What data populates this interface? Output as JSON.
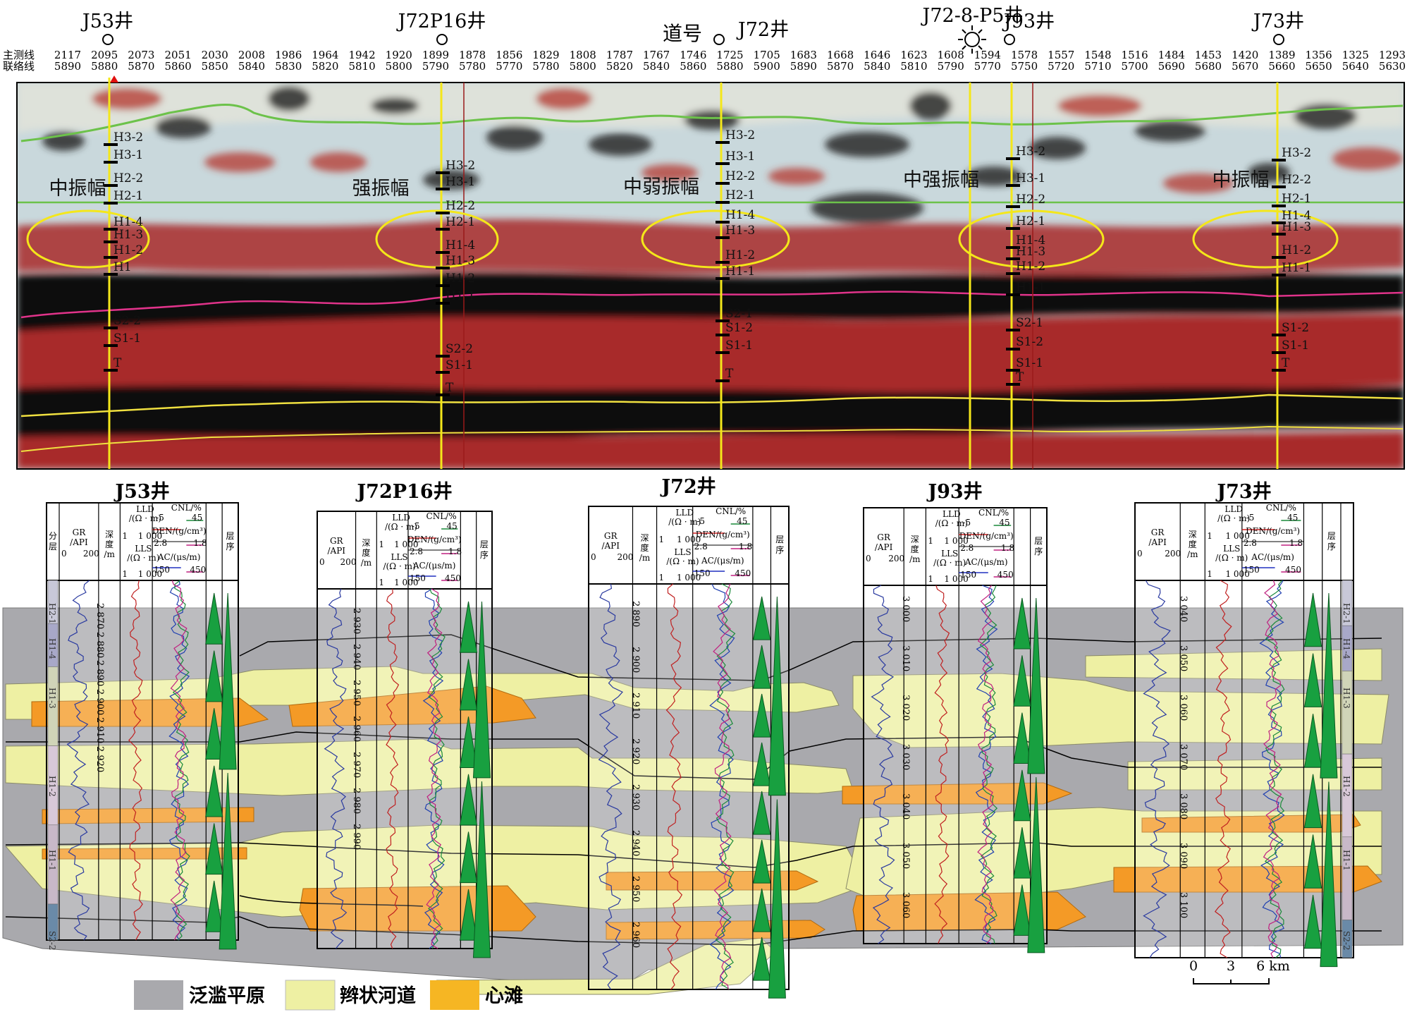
{
  "header": {
    "main_line_label": "主测线",
    "tie_line_label": "联络线",
    "main_line_values": [
      "2117",
      "2095",
      "2073",
      "2051",
      "2030",
      "2008",
      "1986",
      "1964",
      "1942",
      "1920",
      "1899",
      "1878",
      "1856",
      "1829",
      "1808",
      "1787",
      "1767",
      "1746",
      "1725",
      "1705",
      "1683",
      "1668",
      "1646",
      "1623",
      "1608",
      "1594",
      "1578",
      "1557",
      "1548",
      "1516",
      "1484",
      "1453",
      "1420",
      "1389",
      "1356",
      "1325",
      "1293"
    ],
    "tie_line_values": [
      "5890",
      "5880",
      "5870",
      "5860",
      "5850",
      "5840",
      "5830",
      "5820",
      "5810",
      "5800",
      "5790",
      "5780",
      "5770",
      "5780",
      "5800",
      "5820",
      "5840",
      "5860",
      "5880",
      "5900",
      "5890",
      "5870",
      "5840",
      "5810",
      "5790",
      "5770",
      "5750",
      "5720",
      "5710",
      "5700",
      "5690",
      "5680",
      "5670",
      "5660",
      "5650",
      "5640",
      "5630"
    ],
    "channel_label": "道号"
  },
  "top_wells": [
    {
      "name": "J53井"
    },
    {
      "name": "J72P16井"
    },
    {
      "name": "J72井"
    },
    {
      "name": "J72-8-P5井"
    },
    {
      "name": "J93井"
    },
    {
      "name": "J73井"
    }
  ],
  "amplitude_labels": [
    "中振幅",
    "强振幅",
    "中弱振幅",
    "中强振幅",
    "中振幅"
  ],
  "well_layers": {
    "J53": [
      "H3-2",
      "H3-1",
      "H2-2",
      "H2-1",
      "H1-4",
      "H1-3",
      "H1-2",
      "H1",
      "S2-2",
      "S1-1",
      "T"
    ],
    "J72P16": [
      "H3-2",
      "H3-1",
      "H2-2",
      "H2-1",
      "H1-4",
      "H1-3",
      "H1-2",
      "H1-1",
      "S2-2",
      "S1-1",
      "T"
    ],
    "J72": [
      "H3-2",
      "H3-1",
      "H2-2",
      "H2-1",
      "H1-4",
      "H1-3",
      "H1-2",
      "H1-1",
      "S2-1",
      "S1-2",
      "S1-1",
      "T"
    ],
    "J93": [
      "H3-2",
      "H3-1",
      "H2-2",
      "H2-1",
      "H1-4",
      "H1-3",
      "H1-2",
      "H1-1",
      "S2-1",
      "S1-2",
      "S1-1",
      "T"
    ],
    "J73": [
      "H3-2",
      "H2-2",
      "H2-1",
      "H1-4",
      "H1-3",
      "H1-2",
      "H1-1",
      "S1-2",
      "S1-1",
      "T"
    ]
  },
  "log_wells": [
    {
      "name": "J53井",
      "depths": [
        "2 870",
        "2 880",
        "2 890",
        "2 900",
        "2 910",
        "2 920"
      ],
      "zones": [
        "H2-1",
        "H1-4",
        "H1-3",
        "H1-2",
        "H1-1",
        "S2-2"
      ]
    },
    {
      "name": "J72P16井",
      "depths": [
        "2 930",
        "2 940",
        "2 950",
        "2 960",
        "2 970",
        "2 980",
        "2 990"
      ]
    },
    {
      "name": "J72井",
      "depths": [
        "2 890",
        "2 900",
        "2 910",
        "2 920",
        "2 930",
        "2 940",
        "2 950",
        "2 960"
      ]
    },
    {
      "name": "J93井",
      "depths": [
        "3 000",
        "3 010",
        "3 020",
        "3 030",
        "3 040",
        "3 050",
        "3 060"
      ]
    },
    {
      "name": "J73井",
      "depths": [
        "3 040",
        "3 050",
        "3 060",
        "3 070",
        "3 080",
        "3 090",
        "3 100"
      ],
      "zones": [
        "H2-1",
        "H1-4",
        "H1-3",
        "H1-2",
        "H1-1",
        "S2-2"
      ]
    }
  ],
  "log_header": {
    "gr": "GR",
    "gr_unit": "/API",
    "gr_min": "0",
    "gr_max": "200",
    "depth": "深",
    "depth2": "度",
    "depth_unit": "/m",
    "lld": "LLD",
    "lld_unit": "/(Ω · m)",
    "lld_min": "1",
    "lld_max": "1 000",
    "lls": "LLS",
    "lls_unit": "/(Ω · m)",
    "lls_min": "1",
    "lls_max": "1 000",
    "cnl": "CNL/%",
    "cnl_min": "-5",
    "cnl_max": "45",
    "den": "DEN/(g/cm³)",
    "den_min": "2.8",
    "den_max": "1.8",
    "ac": "AC/(μs/m)",
    "ac_min": "150",
    "ac_max": "450",
    "seq": "层",
    "seq2": "序",
    "layer": "分",
    "layer2": "层"
  },
  "legend": {
    "floodplain": "泛滥平原",
    "braided_channel": "辫状河道",
    "bar": "心滩",
    "colors": {
      "floodplain": "#a9a9ad",
      "braided_channel": "#eef0a3",
      "bar": "#f49a26"
    }
  },
  "scale": {
    "labels": [
      "0",
      "3",
      "6 km"
    ]
  }
}
